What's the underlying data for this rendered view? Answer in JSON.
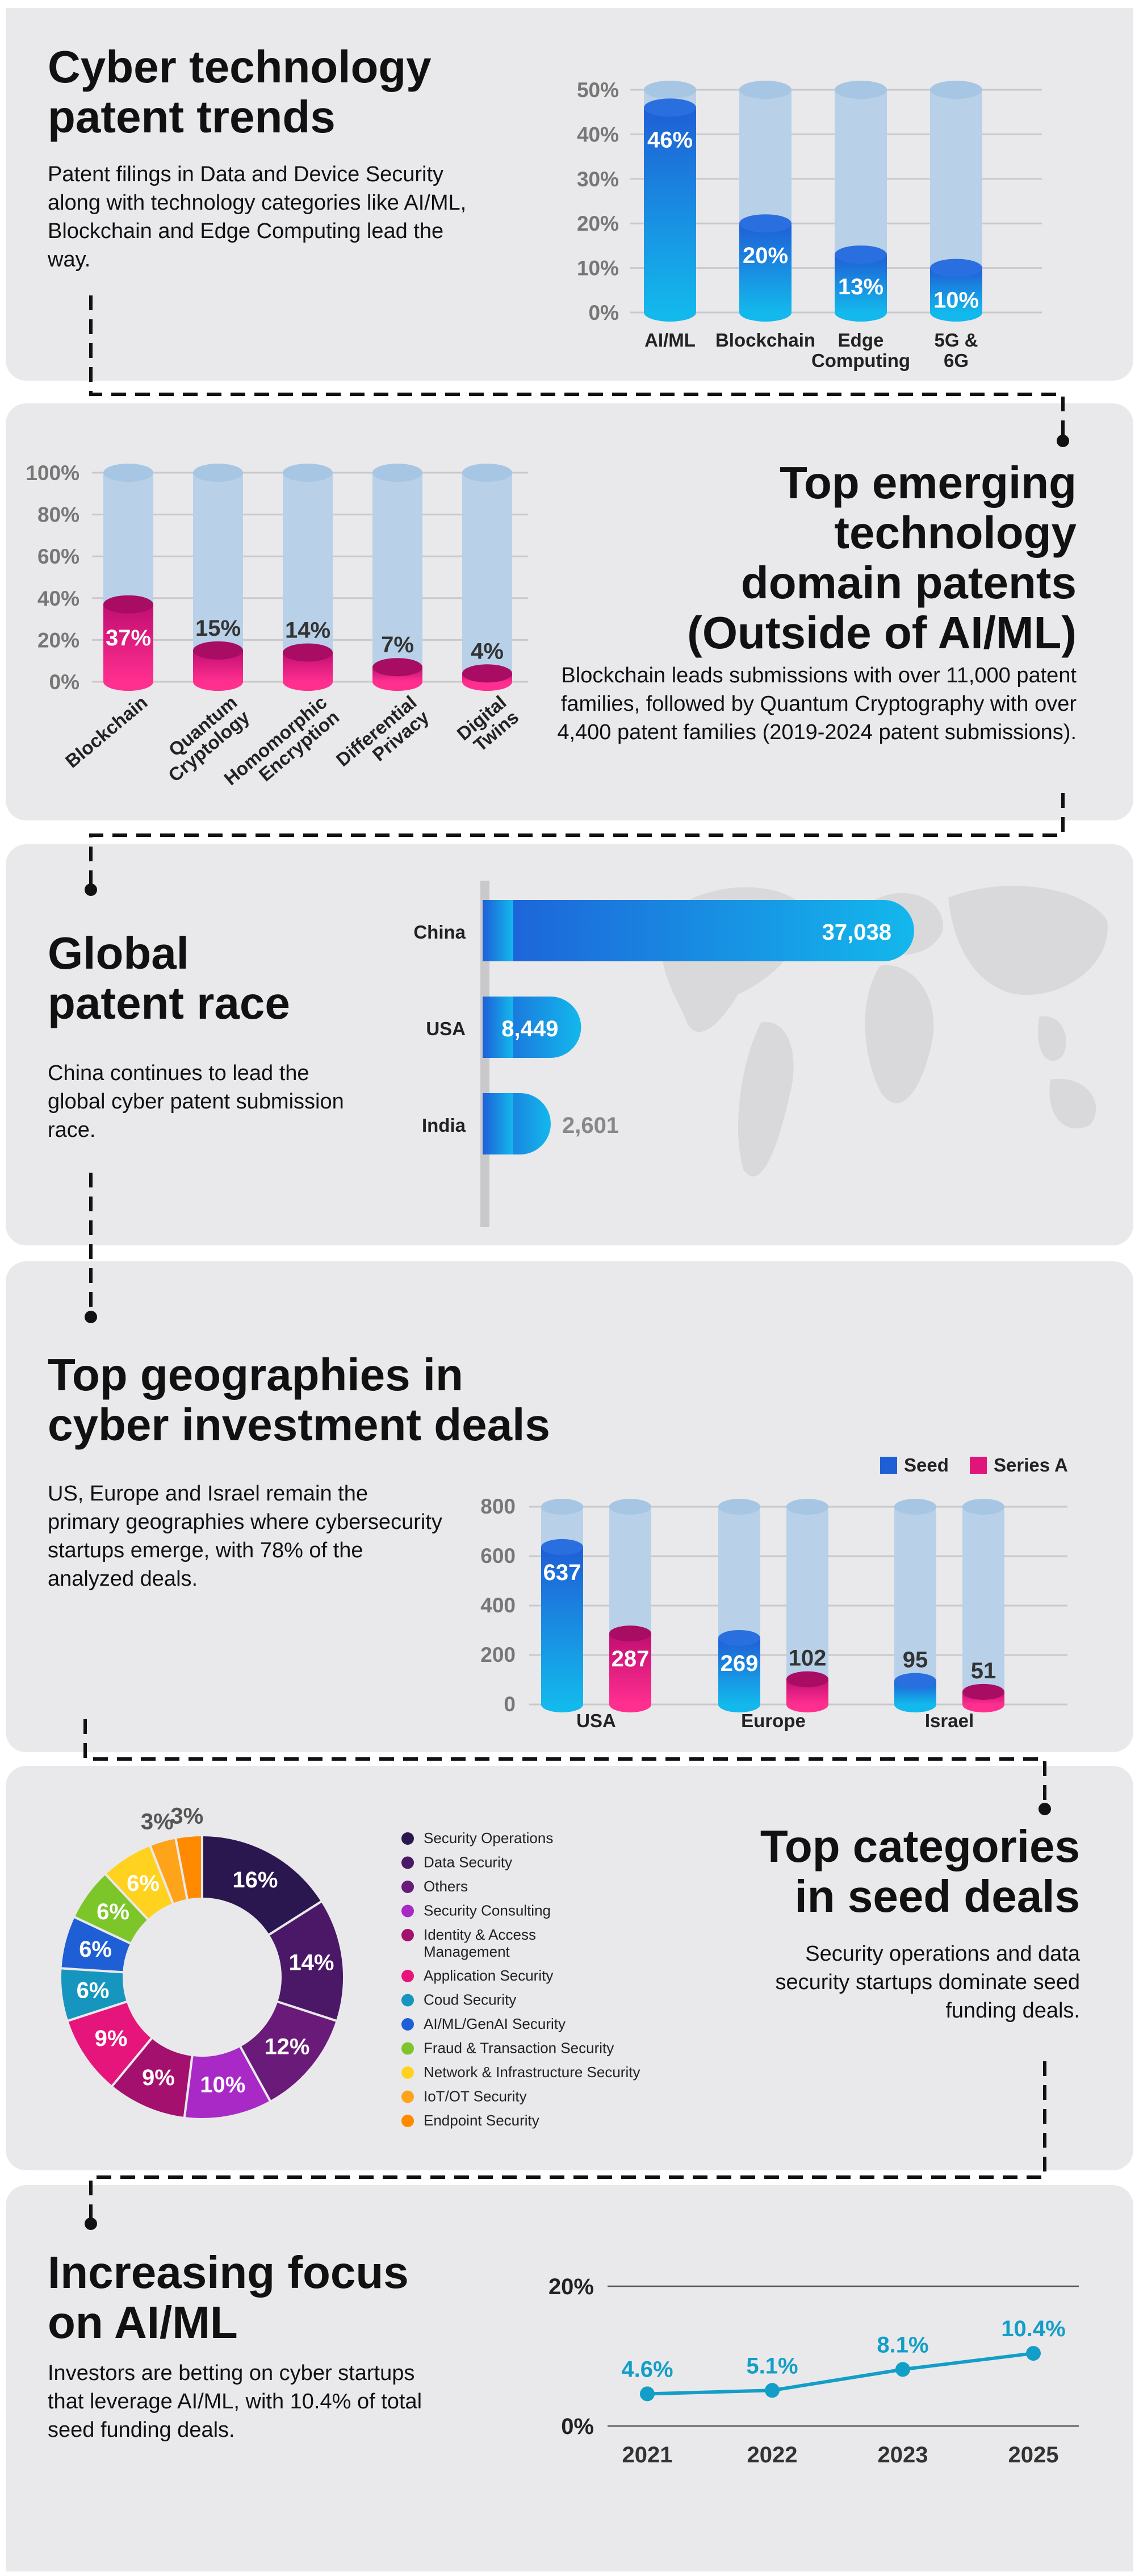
{
  "colors": {
    "blue_dark": "#1f5fd6",
    "blue_light": "#13b8ec",
    "magenta": "#c10e72",
    "pink": "#ff2f8f",
    "track": "#b8d1e8",
    "line": "#139ec8"
  },
  "section1": {
    "title_line1": "Cyber technology",
    "title_line2": "patent trends",
    "description": "Patent filings in Data and Device Security along with technology categories like AI/ML, Blockchain and Edge Computing lead the way."
  },
  "section2": {
    "title_line1": "Top emerging",
    "title_line2": "technology",
    "title_line3": "domain patents",
    "title_line4": "(Outside of AI/ML)",
    "description": "Blockchain leads submissions with over 11,000 patent families, followed by Quantum Cryptography with over 4,400 patent families (2019-2024 patent submissions)."
  },
  "section3": {
    "title_line1": "Global",
    "title_line2": "patent race",
    "description": "China continues to lead the global cyber patent submission race."
  },
  "section4": {
    "title_line1": "Top geographies in",
    "title_line2": "cyber investment deals",
    "description": "US, Europe and Israel remain the primary geographies where cybersecurity startups emerge, with 78% of the analyzed deals."
  },
  "section5": {
    "title_line1": "Top categories",
    "title_line2": "in seed deals",
    "description": "Security operations and data security startups dominate seed funding deals."
  },
  "section6": {
    "title_line1": "Increasing focus",
    "title_line2": "on AI/ML",
    "description": "Investors are betting on cyber startups that leverage AI/ML, with 10.4% of total seed funding deals."
  },
  "chart_data": [
    {
      "type": "bar",
      "categories": [
        "AI/ML",
        "Blockchain",
        "Edge Computing",
        "5G & 6G"
      ],
      "values": [
        46,
        20,
        13,
        10
      ],
      "ylim": [
        0,
        50
      ],
      "yticks": [
        "0%",
        "10%",
        "20%",
        "30%",
        "40%",
        "50%"
      ],
      "grid": true
    },
    {
      "type": "bar",
      "categories": [
        "Blockchain",
        "Quantum Cryptology",
        "Homomorphic Encryption",
        "Differential Privacy",
        "Digital Twins"
      ],
      "values": [
        37,
        15,
        14,
        7,
        4
      ],
      "ylim": [
        0,
        100
      ],
      "yticks": [
        "0%",
        "20%",
        "40%",
        "60%",
        "80%",
        "100%"
      ],
      "grid": true
    },
    {
      "type": "bar",
      "orientation": "horizontal",
      "categories": [
        "China",
        "USA",
        "India"
      ],
      "values": [
        37038,
        8449,
        2601
      ],
      "value_labels": [
        "37,038",
        "8,449",
        "2,601"
      ]
    },
    {
      "type": "bar",
      "categories": [
        "USA",
        "Europe",
        "Israel"
      ],
      "series": [
        {
          "name": "Seed",
          "values": [
            637,
            269,
            95
          ]
        },
        {
          "name": "Series A",
          "values": [
            287,
            102,
            51
          ]
        }
      ],
      "ylim": [
        0,
        800
      ],
      "yticks": [
        "0",
        "200",
        "400",
        "600",
        "800"
      ],
      "legend": "top-right",
      "grid": true
    },
    {
      "type": "pie",
      "donut": true,
      "labels": [
        "Security Operations",
        "Data Security",
        "Others",
        "Security Consulting",
        "Identity & Access Management",
        "Application Security",
        "Coud Security",
        "AI/ML/GenAI Security",
        "Fraud & Transaction Security",
        "Network & Infrastructure Security",
        "IoT/OT Security",
        "Endpoint Security"
      ],
      "values": [
        16,
        14,
        12,
        10,
        9,
        9,
        6,
        6,
        6,
        6,
        3,
        3
      ],
      "colors": [
        "#2a1750",
        "#4b1868",
        "#6a1a78",
        "#a829c6",
        "#a3106d",
        "#e6157c",
        "#1696be",
        "#1f5fd6",
        "#7dc62a",
        "#ffd21f",
        "#ffa31a",
        "#ff8a00"
      ],
      "legend": "right"
    },
    {
      "type": "line",
      "x": [
        "2021",
        "2022",
        "2023",
        "2025"
      ],
      "values": [
        4.6,
        5.1,
        8.1,
        10.4
      ],
      "value_labels": [
        "4.6%",
        "5.1%",
        "8.1%",
        "10.4%"
      ],
      "ylim": [
        0,
        20
      ],
      "yticks": [
        "0%",
        "20%"
      ],
      "grid": true
    }
  ]
}
